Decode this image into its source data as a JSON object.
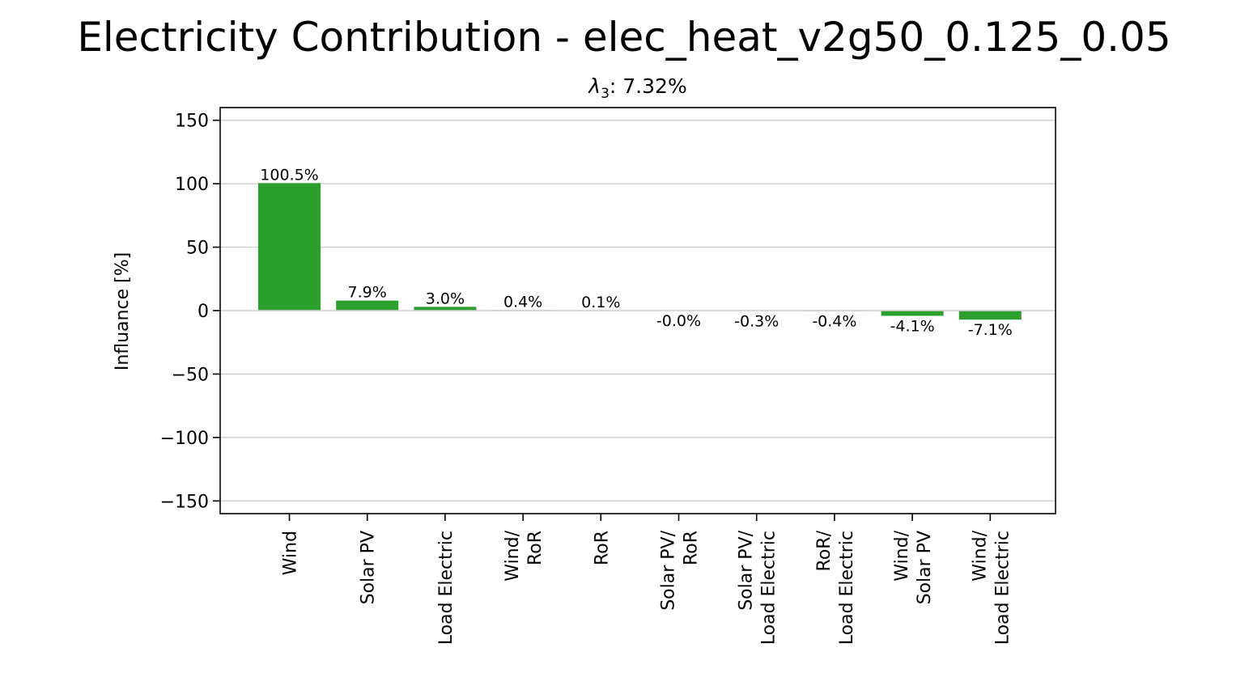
{
  "chart_data": {
    "type": "bar",
    "title": "Electricity Contribution - elec_heat_v2g50_0.125_0.05",
    "subtitle_symbol": "λ",
    "subtitle_subscript": "3",
    "subtitle_rest": ": 7.32%",
    "xlabel": "",
    "ylabel": "Influance [%]",
    "ylim": [
      -160,
      160
    ],
    "yticks": [
      150,
      100,
      50,
      0,
      -50,
      -100,
      -150
    ],
    "ytick_labels": [
      "150",
      "100",
      "50",
      "0",
      "−50",
      "−100",
      "−150"
    ],
    "grid": "horizontal",
    "bar_color": "#2ca02c",
    "categories": [
      [
        "Wind"
      ],
      [
        "Solar PV"
      ],
      [
        "Load Electric"
      ],
      [
        "Wind/",
        "RoR"
      ],
      [
        "RoR"
      ],
      [
        "Solar PV/",
        "RoR"
      ],
      [
        "Solar PV/",
        "Load Electric"
      ],
      [
        "RoR/",
        "Load Electric"
      ],
      [
        "Wind/",
        "Solar PV"
      ],
      [
        "Wind/",
        "Load Electric"
      ]
    ],
    "values": [
      100.5,
      7.9,
      3.0,
      0.4,
      0.1,
      -0.0,
      -0.3,
      -0.4,
      -4.1,
      -7.1
    ],
    "value_labels": [
      "100.5%",
      "7.9%",
      "3.0%",
      "0.4%",
      "0.1%",
      "-0.0%",
      "-0.3%",
      "-0.4%",
      "-4.1%",
      "-7.1%"
    ]
  }
}
